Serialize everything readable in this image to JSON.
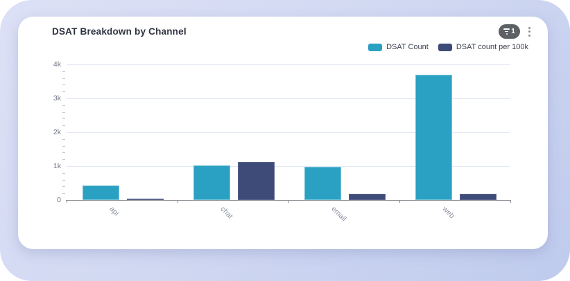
{
  "header": {
    "title": "DSAT Breakdown by Channel",
    "filter_badge_count": "1"
  },
  "legend": {
    "items": [
      {
        "label": "DSAT Count",
        "color": "#2aa0c2"
      },
      {
        "label": "DSAT count per 100k",
        "color": "#3e4a78"
      }
    ]
  },
  "chart_data": {
    "type": "bar",
    "title": "DSAT Breakdown by Channel",
    "categories": [
      "api",
      "chat",
      "email",
      "web"
    ],
    "series": [
      {
        "name": "DSAT Count",
        "color": "#2aa0c2",
        "values": [
          430,
          1020,
          990,
          3700
        ]
      },
      {
        "name": "DSAT count per 100k",
        "color": "#3e4a78",
        "values": [
          40,
          1130,
          180,
          180
        ]
      }
    ],
    "ylim": [
      0,
      4000
    ],
    "y_major_step": 1000,
    "y_minor_step": 200,
    "y_tick_labels": [
      "0",
      "1k",
      "2k",
      "3k",
      "4k"
    ],
    "grid": "horizontal-major",
    "legend_position": "top-right",
    "x_label_rotation": 45
  }
}
